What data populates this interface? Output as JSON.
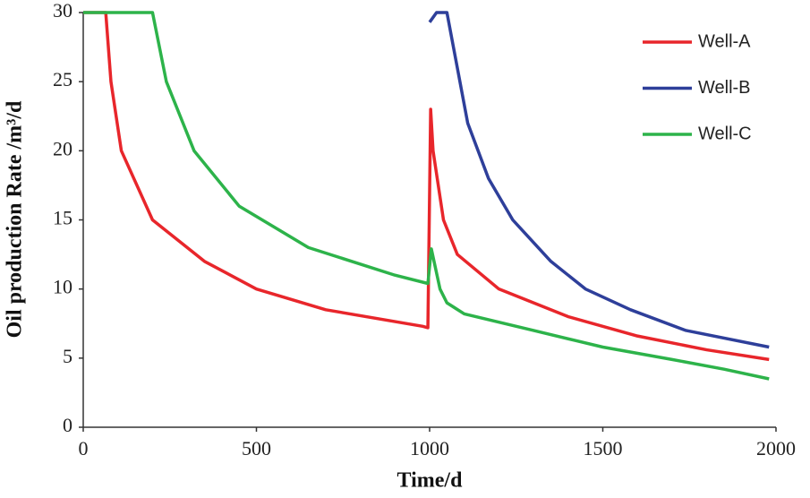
{
  "chart_data": {
    "type": "line",
    "x_label": "Time/d",
    "y_label": "Oil production Rate /m³/d",
    "xlim": [
      0,
      2000
    ],
    "xticks": [
      0,
      500,
      1000,
      1500,
      2000
    ],
    "ylim": [
      0,
      30
    ],
    "yticks": [
      0,
      5,
      10,
      15,
      20,
      25,
      30
    ],
    "grid": false,
    "legend": "upper right",
    "series": [
      {
        "name": "Well-A",
        "color": "#e8262b",
        "x": [
          0,
          65,
          80,
          110,
          200,
          350,
          500,
          700,
          980,
          995,
          1003,
          1010,
          1040,
          1080,
          1200,
          1400,
          1600,
          1800,
          1980
        ],
        "values": [
          30,
          30,
          25,
          20,
          15,
          12,
          10,
          8.5,
          7.3,
          7.2,
          23,
          20,
          15,
          12.5,
          10,
          8,
          6.6,
          5.6,
          4.9
        ]
      },
      {
        "name": "Well-B",
        "color": "#2e3f9a",
        "x": [
          1000,
          1020,
          1050,
          1080,
          1110,
          1170,
          1240,
          1350,
          1450,
          1580,
          1740,
          1980
        ],
        "values": [
          29.3,
          30,
          30,
          26,
          22,
          18,
          15,
          12,
          10,
          8.5,
          7,
          5.8
        ]
      },
      {
        "name": "Well-C",
        "color": "#2db34a",
        "x": [
          0,
          200,
          240,
          320,
          450,
          650,
          900,
          995,
          1005,
          1030,
          1050,
          1100,
          1300,
          1500,
          1700,
          1850,
          1980
        ],
        "values": [
          30,
          30,
          25,
          20,
          16,
          13,
          11,
          10.4,
          12.9,
          10,
          9,
          8.2,
          7,
          5.8,
          4.9,
          4.2,
          3.5
        ]
      }
    ]
  }
}
